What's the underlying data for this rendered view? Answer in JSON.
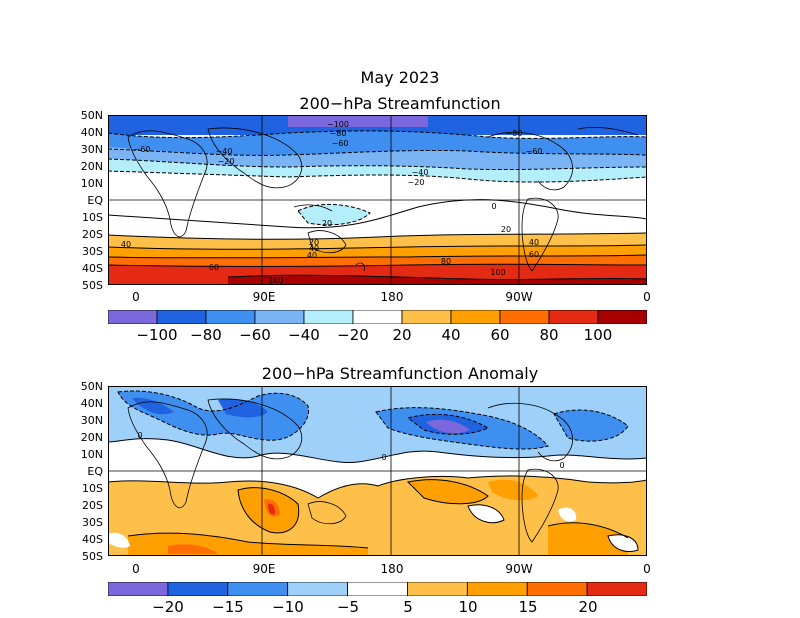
{
  "title": "May 2023",
  "panels": [
    {
      "id": "top",
      "title": "200−hPa Streamfunction",
      "lat_labels": [
        "50N",
        "40N",
        "30N",
        "20N",
        "10N",
        "EQ",
        "10S",
        "20S",
        "30S",
        "40S",
        "50S"
      ],
      "lon_labels": [
        "0",
        "90E",
        "180",
        "90W",
        "0"
      ],
      "colorbar": {
        "colors": [
          "#7b68dd",
          "#1f63e0",
          "#3f8ff0",
          "#7ab4f5",
          "#b4eefa",
          "#ffffff",
          "#ffc04a",
          "#ffa000",
          "#ff6e00",
          "#e52a14",
          "#a80000"
        ],
        "labels": [
          "−100",
          "−80",
          "−60",
          "−40",
          "−20",
          "20",
          "40",
          "60",
          "80",
          "100"
        ]
      },
      "contour_labels": [
        "−100",
        "−80",
        "−60",
        "−60",
        "−80",
        "−60",
        "−40",
        "−20",
        "−40",
        "−20",
        "0",
        "20",
        "20",
        "20",
        "40",
        "40",
        "40",
        "60",
        "60",
        "80",
        "80",
        "100",
        "100",
        "40",
        "60",
        "−60"
      ]
    },
    {
      "id": "bottom",
      "title": "200−hPa Streamfunction Anomaly",
      "lat_labels": [
        "50N",
        "40N",
        "30N",
        "20N",
        "10N",
        "EQ",
        "10S",
        "20S",
        "30S",
        "40S",
        "50S"
      ],
      "lon_labels": [
        "0",
        "90E",
        "180",
        "90W",
        "0"
      ],
      "colorbar": {
        "colors": [
          "#7b68dd",
          "#1f63e0",
          "#3f8ff0",
          "#9ed0fa",
          "#ffffff",
          "#ffc04a",
          "#ffa000",
          "#ff6e00",
          "#e52a14"
        ],
        "labels": [
          "−20",
          "−15",
          "−10",
          "−5",
          "5",
          "10",
          "15",
          "20"
        ]
      },
      "contour_labels": [
        "0",
        "0",
        "0"
      ]
    }
  ]
}
